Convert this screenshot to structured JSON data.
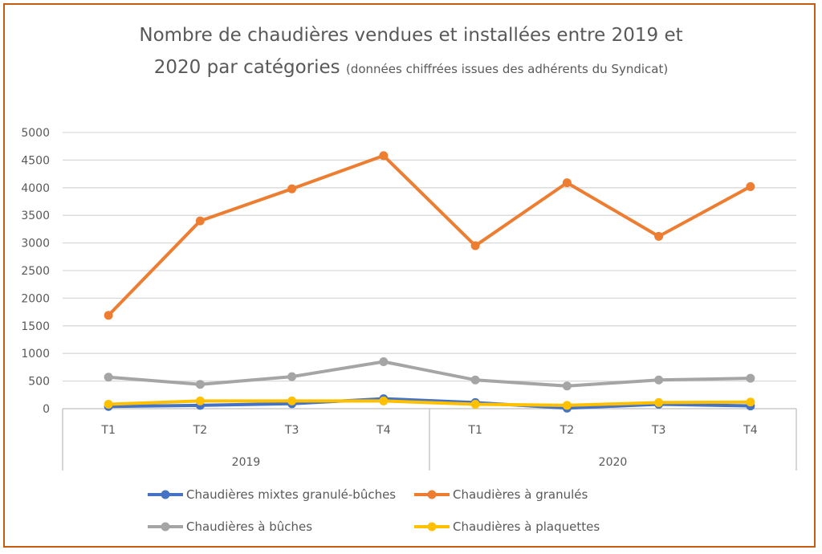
{
  "chart_data": {
    "type": "line",
    "title_line1": "Nombre de chaudières vendues et installées entre 2019 et",
    "title_line2": "2020 par catégories",
    "subtitle": "(données chiffrées issues des adhérents du Syndicat)",
    "categories": [
      "T1",
      "T2",
      "T3",
      "T4",
      "T1",
      "T2",
      "T3",
      "T4"
    ],
    "groups": [
      {
        "label": "2019",
        "span": [
          0,
          3
        ]
      },
      {
        "label": "2020",
        "span": [
          4,
          7
        ]
      }
    ],
    "ylim": [
      0,
      5000
    ],
    "yticks": [
      0,
      500,
      1000,
      1500,
      2000,
      2500,
      3000,
      3500,
      4000,
      4500,
      5000
    ],
    "grid": true,
    "legend_position": "bottom",
    "series": [
      {
        "name": "Chaudières mixtes granulé-bûches",
        "color": "#4472c4",
        "values": [
          40,
          60,
          90,
          180,
          110,
          10,
          80,
          50
        ]
      },
      {
        "name": "Chaudières à granulés",
        "color": "#ed7d31",
        "values": [
          1690,
          3400,
          3980,
          4580,
          2950,
          4090,
          3120,
          4020
        ]
      },
      {
        "name": "Chaudières à bûches",
        "color": "#a5a5a5",
        "values": [
          570,
          440,
          580,
          850,
          520,
          410,
          520,
          550
        ]
      },
      {
        "name": "Chaudières à plaquettes",
        "color": "#ffc000",
        "values": [
          80,
          140,
          140,
          140,
          80,
          60,
          110,
          120
        ]
      }
    ]
  }
}
